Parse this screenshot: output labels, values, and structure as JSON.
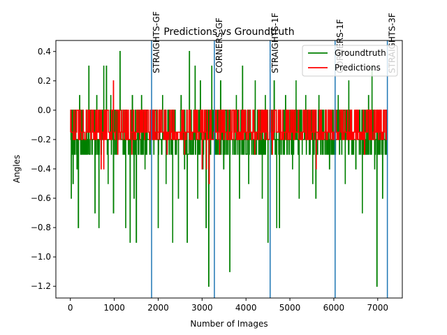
{
  "chart_data": {
    "type": "line",
    "title": "Predictions vs Groundtruth",
    "xlabel": "Number of Images",
    "ylabel": "Angles",
    "xlim": [
      -330,
      7560
    ],
    "ylim": [
      -1.28,
      0.475
    ],
    "x_ticks": [
      0,
      1000,
      2000,
      3000,
      4000,
      5000,
      6000,
      7000
    ],
    "y_ticks": [
      0.4,
      0.2,
      0.0,
      -0.2,
      -0.4,
      -0.6,
      -0.8,
      -1.0,
      -1.2
    ],
    "y_tick_labels": [
      "0.4",
      "0.2",
      "0.0",
      "−0.2",
      "−0.4",
      "−0.6",
      "−0.8",
      "−1.0",
      "−1.2"
    ],
    "grid": false,
    "legend_position": "top-right",
    "series": [
      {
        "name": "Groundtruth",
        "color": "#008000",
        "baseline": -0.2,
        "band": [
          -0.3,
          0.0
        ],
        "spikes": [
          {
            "x": 20,
            "y": -0.6
          },
          {
            "x": 60,
            "y": -0.5
          },
          {
            "x": 150,
            "y": -0.4
          },
          {
            "x": 180,
            "y": -0.8
          },
          {
            "x": 210,
            "y": 0.1
          },
          {
            "x": 280,
            "y": -0.3
          },
          {
            "x": 360,
            "y": -0.3
          },
          {
            "x": 420,
            "y": 0.3
          },
          {
            "x": 500,
            "y": -0.2
          },
          {
            "x": 560,
            "y": -0.7
          },
          {
            "x": 600,
            "y": 0.1
          },
          {
            "x": 650,
            "y": -0.8
          },
          {
            "x": 700,
            "y": -0.2
          },
          {
            "x": 760,
            "y": 0.3
          },
          {
            "x": 820,
            "y": 0.3
          },
          {
            "x": 860,
            "y": -0.5
          },
          {
            "x": 920,
            "y": 0.1
          },
          {
            "x": 980,
            "y": -0.7
          },
          {
            "x": 1050,
            "y": -0.3
          },
          {
            "x": 1130,
            "y": 0.4
          },
          {
            "x": 1200,
            "y": -0.3
          },
          {
            "x": 1260,
            "y": -0.8
          },
          {
            "x": 1320,
            "y": -0.3
          },
          {
            "x": 1360,
            "y": -0.9
          },
          {
            "x": 1410,
            "y": 0.1
          },
          {
            "x": 1450,
            "y": -0.6
          },
          {
            "x": 1500,
            "y": -0.9
          },
          {
            "x": 1560,
            "y": -0.3
          },
          {
            "x": 1620,
            "y": 0.1
          },
          {
            "x": 1700,
            "y": -0.4
          },
          {
            "x": 1770,
            "y": -0.2
          },
          {
            "x": 1900,
            "y": -0.3
          },
          {
            "x": 2000,
            "y": -0.8
          },
          {
            "x": 2100,
            "y": 0.1
          },
          {
            "x": 2180,
            "y": -0.5
          },
          {
            "x": 2250,
            "y": -0.3
          },
          {
            "x": 2330,
            "y": -0.9
          },
          {
            "x": 2400,
            "y": -0.2
          },
          {
            "x": 2460,
            "y": -0.6
          },
          {
            "x": 2520,
            "y": 0.1
          },
          {
            "x": 2600,
            "y": -0.4
          },
          {
            "x": 2660,
            "y": -0.9
          },
          {
            "x": 2710,
            "y": 0.4
          },
          {
            "x": 2760,
            "y": -0.3
          },
          {
            "x": 2840,
            "y": 0.3
          },
          {
            "x": 2900,
            "y": -0.6
          },
          {
            "x": 2960,
            "y": 0.2
          },
          {
            "x": 3020,
            "y": -0.4
          },
          {
            "x": 3090,
            "y": -0.8
          },
          {
            "x": 3150,
            "y": -1.2
          },
          {
            "x": 3220,
            "y": 0.3
          },
          {
            "x": 3260,
            "y": -0.2
          },
          {
            "x": 3350,
            "y": -0.3
          },
          {
            "x": 3420,
            "y": 0.2
          },
          {
            "x": 3490,
            "y": -0.4
          },
          {
            "x": 3560,
            "y": -0.2
          },
          {
            "x": 3630,
            "y": -1.1
          },
          {
            "x": 3700,
            "y": -0.3
          },
          {
            "x": 3780,
            "y": 0.1
          },
          {
            "x": 3850,
            "y": -0.6
          },
          {
            "x": 3920,
            "y": 0.3
          },
          {
            "x": 3990,
            "y": -0.2
          },
          {
            "x": 4060,
            "y": -0.5
          },
          {
            "x": 4130,
            "y": -0.3
          },
          {
            "x": 4210,
            "y": 0.2
          },
          {
            "x": 4290,
            "y": -0.3
          },
          {
            "x": 4370,
            "y": -0.6
          },
          {
            "x": 4440,
            "y": 0.1
          },
          {
            "x": 4500,
            "y": -0.9
          },
          {
            "x": 4580,
            "y": -0.3
          },
          {
            "x": 4640,
            "y": 0.2
          },
          {
            "x": 4700,
            "y": -0.8
          },
          {
            "x": 4760,
            "y": -0.8
          },
          {
            "x": 4820,
            "y": -0.2
          },
          {
            "x": 4900,
            "y": 0.1
          },
          {
            "x": 4980,
            "y": -0.3
          },
          {
            "x": 5060,
            "y": -0.4
          },
          {
            "x": 5140,
            "y": 0.2
          },
          {
            "x": 5210,
            "y": -0.6
          },
          {
            "x": 5280,
            "y": -0.3
          },
          {
            "x": 5360,
            "y": 0.1
          },
          {
            "x": 5440,
            "y": -0.3
          },
          {
            "x": 5520,
            "y": -0.5
          },
          {
            "x": 5590,
            "y": -0.6
          },
          {
            "x": 5660,
            "y": 0.1
          },
          {
            "x": 5740,
            "y": -0.3
          },
          {
            "x": 5820,
            "y": -0.2
          },
          {
            "x": 5900,
            "y": -0.4
          },
          {
            "x": 5980,
            "y": -0.3
          },
          {
            "x": 6100,
            "y": 0.1
          },
          {
            "x": 6180,
            "y": -0.3
          },
          {
            "x": 6260,
            "y": -0.5
          },
          {
            "x": 6340,
            "y": 0.2
          },
          {
            "x": 6420,
            "y": -0.3
          },
          {
            "x": 6500,
            "y": -0.4
          },
          {
            "x": 6580,
            "y": -0.3
          },
          {
            "x": 6650,
            "y": -0.7
          },
          {
            "x": 6720,
            "y": -0.2
          },
          {
            "x": 6790,
            "y": 0.1
          },
          {
            "x": 6870,
            "y": 0.3
          },
          {
            "x": 6930,
            "y": -0.4
          },
          {
            "x": 6980,
            "y": -1.2
          },
          {
            "x": 7050,
            "y": -0.3
          },
          {
            "x": 7110,
            "y": -0.6
          },
          {
            "x": 7180,
            "y": -0.3
          }
        ]
      },
      {
        "name": "Predictions",
        "color": "#ff0000",
        "baseline": -0.15,
        "band": [
          -0.2,
          0.0
        ],
        "spikes": [
          {
            "x": 700,
            "y": -0.4
          },
          {
            "x": 760,
            "y": -0.4
          },
          {
            "x": 980,
            "y": 0.2
          },
          {
            "x": 1080,
            "y": -0.3
          },
          {
            "x": 1400,
            "y": -0.3
          },
          {
            "x": 2200,
            "y": -0.3
          },
          {
            "x": 2600,
            "y": -0.3
          },
          {
            "x": 3000,
            "y": -0.4
          },
          {
            "x": 3100,
            "y": -0.4
          },
          {
            "x": 3160,
            "y": -0.5
          },
          {
            "x": 3400,
            "y": -0.3
          },
          {
            "x": 4200,
            "y": -0.3
          },
          {
            "x": 4600,
            "y": -0.3
          },
          {
            "x": 5600,
            "y": -0.4
          },
          {
            "x": 6700,
            "y": -0.3
          }
        ]
      }
    ],
    "vertical_lines": [
      {
        "x": 1850,
        "label": "STRAIGHTS-GF",
        "color": "#1f77b4"
      },
      {
        "x": 3280,
        "label": "CORNERS-GF",
        "color": "#1f77b4"
      },
      {
        "x": 4550,
        "label": "STRAIGHTS-1F",
        "color": "#1f77b4"
      },
      {
        "x": 6030,
        "label": "CORNERS-1F",
        "color": "#1f77b4"
      },
      {
        "x": 7220,
        "label": "STRAIGHTS-3F",
        "color": "#1f77b4"
      }
    ],
    "n_points": 7220
  }
}
